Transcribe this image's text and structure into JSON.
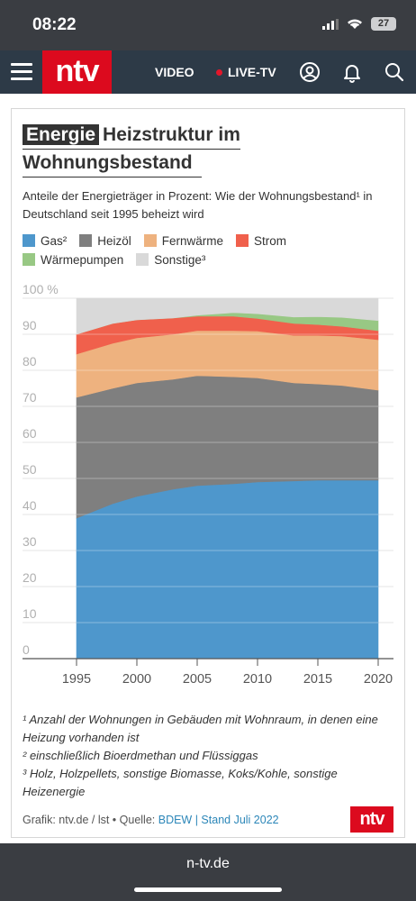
{
  "status_bar": {
    "time": "08:22",
    "battery": "27"
  },
  "nav": {
    "logo": "ntv",
    "video": "VIDEO",
    "live": "LIVE-TV"
  },
  "card": {
    "tag": "Energie",
    "title_rest_1": "Heizstruktur im",
    "title_line_2": "Wohnungsbestand",
    "subtitle": "Anteile der Energieträger in Prozent: Wie der Wohnungsbestand¹ in Deutschland seit 1995 beheizt wird",
    "footnotes": [
      "¹ Anzahl der Wohnungen in Gebäuden mit Wohnraum, in denen eine Heizung vorhanden ist",
      "² einschließlich Bioerdmethan und Flüssiggas",
      "³ Holz, Holzpellets, sonstige Biomasse, Koks/Kohle, sonstige Heizenergie"
    ],
    "source_prefix": "Grafik: ntv.de / lst • Quelle: ",
    "source_link": "BDEW | Stand Juli 2022",
    "small_logo": "ntv"
  },
  "chart_data": {
    "type": "area",
    "stacked": true,
    "x": [
      1995,
      1998,
      2000,
      2003,
      2005,
      2008,
      2010,
      2013,
      2015,
      2017,
      2020
    ],
    "xlim": [
      1995,
      2020
    ],
    "ylim": [
      0,
      100
    ],
    "y_unit": "%",
    "xticks": [
      1995,
      2000,
      2005,
      2010,
      2015,
      2020
    ],
    "yticks": [
      0,
      10,
      20,
      30,
      40,
      50,
      60,
      70,
      80,
      90,
      100
    ],
    "series": [
      {
        "name": "Gas²",
        "color": "#4e97cc",
        "values": [
          39,
          43,
          45,
          47,
          48,
          48.5,
          49,
          49.3,
          49.5,
          49.5,
          49.5
        ]
      },
      {
        "name": "Heizöl",
        "color": "#7f7f7f",
        "values": [
          33.5,
          32,
          31.5,
          30.5,
          30.5,
          29.7,
          28.9,
          27.2,
          26.7,
          26.3,
          25
        ]
      },
      {
        "name": "Fernwärme",
        "color": "#eeb27f",
        "values": [
          12,
          12.5,
          12.5,
          12.5,
          12.5,
          12.8,
          13,
          13.2,
          13.5,
          13.7,
          14
        ]
      },
      {
        "name": "Strom",
        "color": "#f0604c",
        "values": [
          5.5,
          5.5,
          5,
          4.5,
          4,
          4,
          3.5,
          3.3,
          3,
          2.7,
          2.5
        ]
      },
      {
        "name": "Wärmepumpen",
        "color": "#98c884",
        "values": [
          0,
          0,
          0,
          0,
          0.3,
          1,
          1.3,
          1.8,
          2.2,
          2.5,
          2.8
        ]
      },
      {
        "name": "Sonstige³",
        "color": "#d9d9d9",
        "values": [
          10,
          7,
          6,
          5.5,
          4.7,
          4,
          4.3,
          5.2,
          5.1,
          5.3,
          6.2
        ]
      }
    ]
  }
}
